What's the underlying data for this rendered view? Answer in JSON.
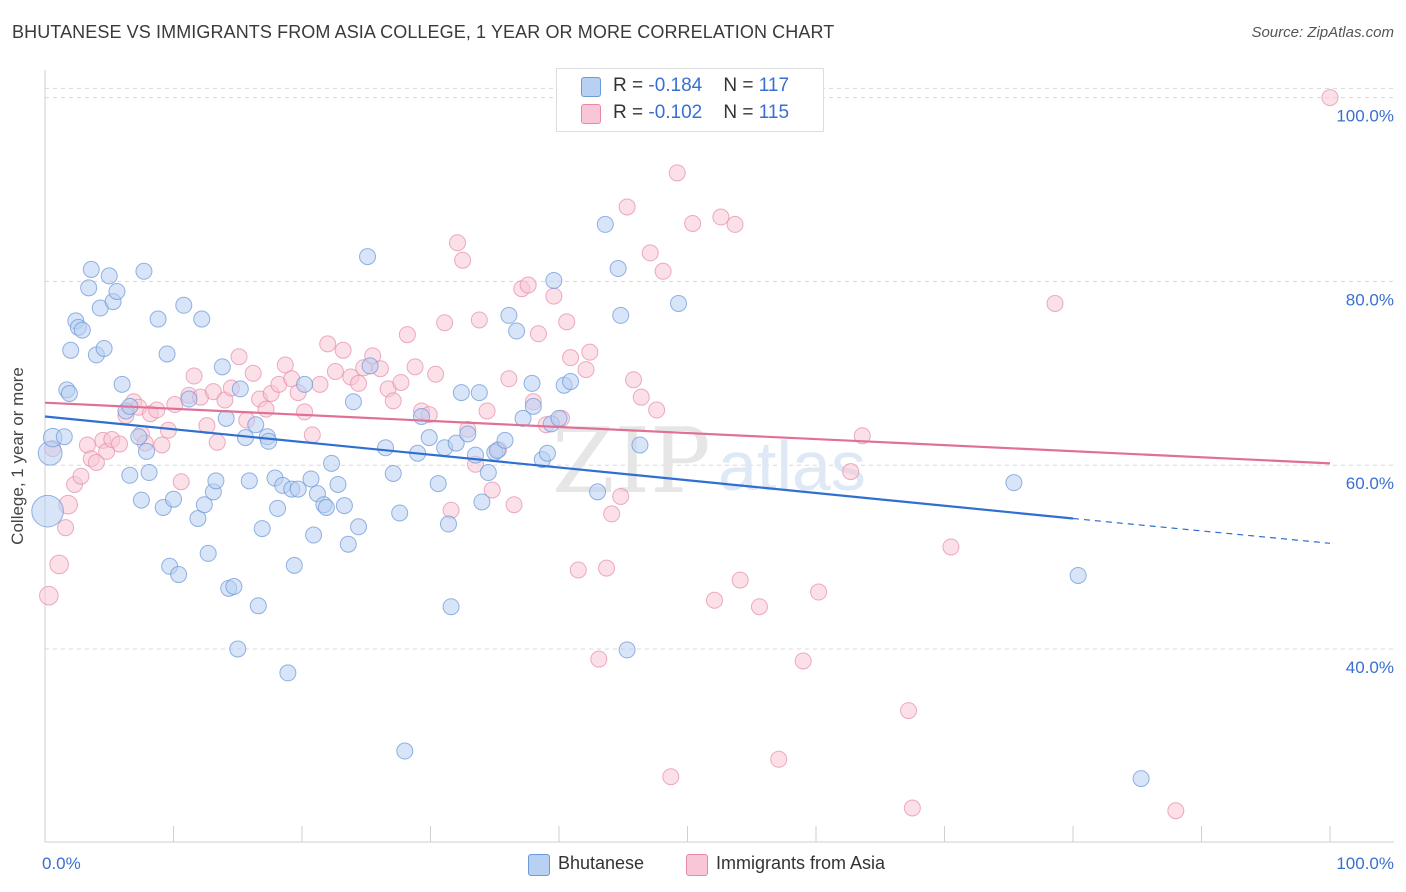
{
  "header": {
    "title": "BHUTANESE VS IMMIGRANTS FROM ASIA COLLEGE, 1 YEAR OR MORE CORRELATION CHART",
    "source": "Source: ZipAtlas.com"
  },
  "watermark": {
    "zip": "ZIP",
    "atlas": "atlas"
  },
  "legend": {
    "rows": [
      {
        "r_label": "R = ",
        "r_value": "-0.184",
        "n_label": "N = ",
        "n_value": "117"
      },
      {
        "r_label": "R = ",
        "r_value": "-0.102",
        "n_label": "N = ",
        "n_value": "115"
      }
    ]
  },
  "colors": {
    "blue_fill": "#b8d0f2",
    "blue_stroke": "#6f9ad8",
    "blue_line": "#2e6fd1",
    "pink_fill": "#f8c6d6",
    "pink_stroke": "#e68aa8",
    "pink_line": "#e07095",
    "grid": "#d8d8d8",
    "axis_text": "#3a6fd0"
  },
  "chart_data": {
    "type": "scatter",
    "title": "BHUTANESE VS IMMIGRANTS FROM ASIA COLLEGE, 1 YEAR OR MORE CORRELATION CHART",
    "xlabel": "",
    "ylabel": "College, 1 year or more",
    "xlim": [
      0,
      100
    ],
    "ylim": [
      19,
      103
    ],
    "x_tick_labels": [
      "0.0%",
      "100.0%"
    ],
    "y_ticks": [
      40,
      60,
      80,
      100
    ],
    "y_tick_labels": [
      "40.0%",
      "60.0%",
      "80.0%",
      "100.0%"
    ],
    "grid": true,
    "legend_position": "top-center",
    "series": [
      {
        "name": "Bhutanese",
        "stats": {
          "R": -0.184,
          "N": 117
        },
        "trend": {
          "x0": 0,
          "y0": 65.3,
          "x1": 80,
          "y1": 54.2,
          "dashed_to": 100,
          "dashed_y": 51.5
        },
        "points": [
          [
            0.2,
            55,
            10
          ],
          [
            0.4,
            61.3,
            7
          ],
          [
            0.6,
            63,
            5
          ],
          [
            1.5,
            63.1,
            4
          ],
          [
            1.7,
            68.2,
            4
          ],
          [
            1.9,
            67.8,
            4
          ],
          [
            2,
            72.5,
            4
          ],
          [
            2.4,
            75.7,
            4
          ],
          [
            2.6,
            75,
            4
          ],
          [
            2.9,
            74.7,
            4
          ],
          [
            3.4,
            79.3,
            4
          ],
          [
            3.6,
            81.3,
            4
          ],
          [
            4,
            72,
            4
          ],
          [
            4.3,
            77.1,
            4
          ],
          [
            4.6,
            72.7,
            4
          ],
          [
            5,
            80.6,
            4
          ],
          [
            5.3,
            77.8,
            4
          ],
          [
            5.6,
            78.9,
            4
          ],
          [
            6,
            68.8,
            4
          ],
          [
            6.3,
            65.9,
            4
          ],
          [
            6.6,
            66.4,
            4
          ],
          [
            6.6,
            58.9,
            4
          ],
          [
            7.3,
            63.1,
            4
          ],
          [
            7.5,
            56.2,
            4
          ],
          [
            7.7,
            81.1,
            4
          ],
          [
            7.9,
            61.5,
            4
          ],
          [
            8.1,
            59.2,
            4
          ],
          [
            8.8,
            75.9,
            4
          ],
          [
            9.2,
            55.4,
            4
          ],
          [
            9.5,
            72.1,
            4
          ],
          [
            9.7,
            49,
            4
          ],
          [
            10,
            56.3,
            4
          ],
          [
            10.4,
            48.1,
            4
          ],
          [
            10.8,
            77.4,
            4
          ],
          [
            11.2,
            67.2,
            4
          ],
          [
            11.9,
            54.2,
            4
          ],
          [
            12.2,
            75.9,
            4
          ],
          [
            12.4,
            55.7,
            4
          ],
          [
            12.7,
            50.4,
            4
          ],
          [
            13.1,
            57.1,
            4
          ],
          [
            13.3,
            58.3,
            4
          ],
          [
            13.8,
            70.7,
            4
          ],
          [
            14.1,
            65.1,
            4
          ],
          [
            14.3,
            46.6,
            4
          ],
          [
            14.7,
            46.8,
            4
          ],
          [
            15,
            40,
            4
          ],
          [
            15.2,
            68.3,
            4
          ],
          [
            15.6,
            63,
            4
          ],
          [
            15.9,
            58.3,
            4
          ],
          [
            16.4,
            64.4,
            4
          ],
          [
            16.6,
            44.7,
            4
          ],
          [
            16.9,
            53.1,
            4
          ],
          [
            17.3,
            63.1,
            4
          ],
          [
            17.4,
            62.6,
            4
          ],
          [
            17.9,
            58.6,
            4
          ],
          [
            18.1,
            55.3,
            4
          ],
          [
            18.5,
            57.8,
            4
          ],
          [
            18.9,
            37.4,
            4
          ],
          [
            19.2,
            57.4,
            4
          ],
          [
            19.4,
            49.1,
            4
          ],
          [
            19.7,
            57.4,
            4
          ],
          [
            20.2,
            68.8,
            4
          ],
          [
            20.7,
            58.5,
            4
          ],
          [
            20.9,
            52.4,
            4
          ],
          [
            21.2,
            56.9,
            4
          ],
          [
            21.7,
            55.7,
            4
          ],
          [
            21.9,
            55.4,
            4
          ],
          [
            22.3,
            60.2,
            4
          ],
          [
            22.8,
            57.9,
            4
          ],
          [
            23.3,
            55.6,
            4
          ],
          [
            23.6,
            51.4,
            4
          ],
          [
            24,
            66.9,
            4
          ],
          [
            24.4,
            53.3,
            4
          ],
          [
            25.1,
            82.7,
            4
          ],
          [
            25.3,
            70.8,
            4
          ],
          [
            26.5,
            61.9,
            4
          ],
          [
            27.1,
            59.1,
            4
          ],
          [
            27.6,
            54.8,
            4
          ],
          [
            28,
            28.9,
            4
          ],
          [
            29,
            61.3,
            4
          ],
          [
            29.3,
            65.3,
            4
          ],
          [
            29.9,
            63,
            4
          ],
          [
            30.6,
            58,
            4
          ],
          [
            31.1,
            61.9,
            4
          ],
          [
            31.4,
            53.6,
            4
          ],
          [
            31.6,
            44.6,
            4
          ],
          [
            32,
            62.4,
            4
          ],
          [
            32.4,
            67.9,
            4
          ],
          [
            32.9,
            63.4,
            4
          ],
          [
            33.5,
            61.1,
            4
          ],
          [
            33.8,
            67.9,
            4
          ],
          [
            34,
            56,
            4
          ],
          [
            34.5,
            59.2,
            4
          ],
          [
            35,
            61.4,
            4
          ],
          [
            35.2,
            61.6,
            4
          ],
          [
            35.8,
            62.7,
            4
          ],
          [
            36.1,
            76.3,
            4
          ],
          [
            36.7,
            74.6,
            4
          ],
          [
            37.2,
            65.1,
            4
          ],
          [
            37.9,
            68.9,
            4
          ],
          [
            38,
            66.4,
            4
          ],
          [
            38.7,
            60.6,
            4
          ],
          [
            39.1,
            61.3,
            4
          ],
          [
            39.4,
            64.5,
            4
          ],
          [
            39.6,
            80.1,
            4
          ],
          [
            40,
            65.1,
            4
          ],
          [
            40.4,
            68.7,
            4
          ],
          [
            40.9,
            69.1,
            4
          ],
          [
            43,
            57.1,
            4
          ],
          [
            43.6,
            86.2,
            4
          ],
          [
            44.6,
            81.4,
            4
          ],
          [
            44.8,
            76.3,
            4
          ],
          [
            45.3,
            39.9,
            4
          ],
          [
            46.3,
            62.2,
            4
          ],
          [
            49.3,
            77.6,
            4
          ],
          [
            75.4,
            58.1,
            4
          ],
          [
            80.4,
            48,
            4
          ],
          [
            85.3,
            25.9,
            4
          ]
        ]
      },
      {
        "name": "Immigrants from Asia",
        "stats": {
          "R": -0.102,
          "N": 115
        },
        "trend": {
          "x0": 0,
          "y0": 66.8,
          "x1": 100,
          "y1": 60.2
        },
        "points": [
          [
            0.3,
            45.8,
            5
          ],
          [
            0.6,
            61.8,
            4
          ],
          [
            1.1,
            49.2,
            5
          ],
          [
            1.6,
            53.2,
            4
          ],
          [
            1.8,
            55.7,
            5
          ],
          [
            2.3,
            57.9,
            4
          ],
          [
            2.8,
            58.8,
            4
          ],
          [
            3.3,
            62.2,
            4
          ],
          [
            3.6,
            60.7,
            4
          ],
          [
            4,
            60.3,
            4
          ],
          [
            4.5,
            62.7,
            4
          ],
          [
            4.8,
            61.5,
            4
          ],
          [
            5.2,
            62.8,
            4
          ],
          [
            5.8,
            62.3,
            4
          ],
          [
            6.3,
            65.4,
            4
          ],
          [
            6.9,
            66.9,
            4
          ],
          [
            7.3,
            66.3,
            4
          ],
          [
            7.5,
            63.4,
            4
          ],
          [
            7.8,
            62.4,
            4
          ],
          [
            8.2,
            65.6,
            4
          ],
          [
            8.7,
            66,
            4
          ],
          [
            9.1,
            62.2,
            4
          ],
          [
            9.6,
            63.8,
            4
          ],
          [
            10.1,
            66.6,
            4
          ],
          [
            10.6,
            58.2,
            4
          ],
          [
            11.2,
            67.6,
            4
          ],
          [
            11.6,
            69.7,
            4
          ],
          [
            12.1,
            67.4,
            4
          ],
          [
            12.6,
            64.3,
            4
          ],
          [
            13.1,
            68,
            4
          ],
          [
            13.4,
            62.5,
            4
          ],
          [
            14,
            67.1,
            4
          ],
          [
            14.5,
            68.4,
            4
          ],
          [
            15.1,
            71.8,
            4
          ],
          [
            15.7,
            64.9,
            4
          ],
          [
            16.2,
            70,
            4
          ],
          [
            16.7,
            67.2,
            4
          ],
          [
            17.2,
            66.1,
            4
          ],
          [
            17.6,
            67.8,
            4
          ],
          [
            18.2,
            68.8,
            4
          ],
          [
            18.7,
            70.9,
            4
          ],
          [
            19.2,
            69.4,
            4
          ],
          [
            19.7,
            67.9,
            4
          ],
          [
            20.2,
            65.8,
            4
          ],
          [
            20.8,
            63.3,
            4
          ],
          [
            21.4,
            68.8,
            4
          ],
          [
            22,
            73.2,
            4
          ],
          [
            22.6,
            70.2,
            4
          ],
          [
            23.2,
            72.5,
            4
          ],
          [
            23.8,
            69.6,
            4
          ],
          [
            24.4,
            68.9,
            4
          ],
          [
            24.8,
            70.6,
            4
          ],
          [
            25.5,
            71.9,
            4
          ],
          [
            26.1,
            70.5,
            4
          ],
          [
            26.7,
            68.3,
            4
          ],
          [
            27.1,
            67,
            4
          ],
          [
            27.7,
            69,
            4
          ],
          [
            28.2,
            74.2,
            4
          ],
          [
            28.8,
            70.7,
            4
          ],
          [
            29.3,
            65.9,
            4
          ],
          [
            29.9,
            65.5,
            4
          ],
          [
            30.4,
            69.9,
            4
          ],
          [
            31.1,
            75.5,
            4
          ],
          [
            31.6,
            55.1,
            4
          ],
          [
            32.1,
            84.2,
            4
          ],
          [
            32.5,
            82.3,
            4
          ],
          [
            32.9,
            63.9,
            4
          ],
          [
            33.5,
            60.1,
            4
          ],
          [
            33.8,
            75.8,
            4
          ],
          [
            34.4,
            65.9,
            4
          ],
          [
            34.8,
            57.3,
            4
          ],
          [
            35.3,
            61.7,
            4
          ],
          [
            36.1,
            69.4,
            4
          ],
          [
            36.5,
            55.7,
            4
          ],
          [
            37.1,
            79.2,
            4
          ],
          [
            37.6,
            79.6,
            4
          ],
          [
            38,
            66.9,
            4
          ],
          [
            38.4,
            74.3,
            4
          ],
          [
            39,
            64.4,
            4
          ],
          [
            39.6,
            78.4,
            4
          ],
          [
            40.2,
            65.1,
            4
          ],
          [
            40.6,
            75.6,
            4
          ],
          [
            40.9,
            71.7,
            4
          ],
          [
            41.5,
            48.6,
            4
          ],
          [
            42.1,
            70.4,
            4
          ],
          [
            42.4,
            72.3,
            4
          ],
          [
            43.1,
            38.9,
            4
          ],
          [
            43.7,
            48.8,
            4
          ],
          [
            44.1,
            54.7,
            4
          ],
          [
            44.8,
            56.6,
            4
          ],
          [
            45.3,
            88.1,
            4
          ],
          [
            45.8,
            69.3,
            4
          ],
          [
            46.4,
            67.4,
            4
          ],
          [
            47.1,
            83.1,
            4
          ],
          [
            47.6,
            66,
            4
          ],
          [
            48.1,
            81.1,
            4
          ],
          [
            48.7,
            26.1,
            4
          ],
          [
            49.2,
            91.8,
            4
          ],
          [
            50.4,
            86.3,
            4
          ],
          [
            52.1,
            45.3,
            4
          ],
          [
            52.6,
            87,
            4
          ],
          [
            53.7,
            86.2,
            4
          ],
          [
            54.1,
            47.5,
            4
          ],
          [
            55.6,
            44.6,
            4
          ],
          [
            57.1,
            28,
            4
          ],
          [
            59,
            38.7,
            4
          ],
          [
            60.2,
            46.2,
            4
          ],
          [
            62.7,
            59.3,
            4
          ],
          [
            63.6,
            63.2,
            4
          ],
          [
            67.2,
            33.3,
            4
          ],
          [
            67.5,
            22.7,
            4
          ],
          [
            70.5,
            51.1,
            4
          ],
          [
            78.6,
            77.6,
            4
          ],
          [
            88,
            22.4,
            4
          ],
          [
            100,
            100,
            4
          ]
        ]
      }
    ]
  },
  "bottom_legend": {
    "items": [
      "Bhutanese",
      "Immigrants from Asia"
    ]
  }
}
